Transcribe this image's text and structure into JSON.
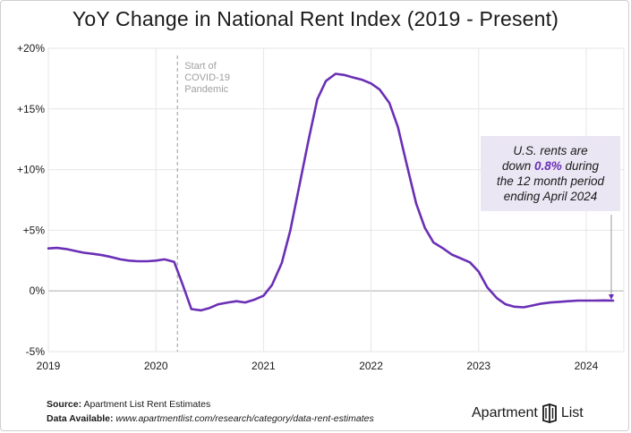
{
  "title": "YoY Change in National Rent Index (2019 - Present)",
  "annotation": {
    "covid_line1": "Start of",
    "covid_line2": "COVID-19",
    "covid_line3": "Pandemic",
    "callout_part1": "U.S. rents are",
    "callout_part2": "down",
    "callout_highlight": "0.8%",
    "callout_part3": "during",
    "callout_part4": "the 12 month period",
    "callout_part5": "ending April 2024"
  },
  "footer": {
    "source_label": "Source:",
    "source_value": "Apartment List Rent Estimates",
    "data_label": "Data Available:",
    "data_value": "www.apartmentlist.com/research/category/data-rent-estimates"
  },
  "logo": {
    "word1": "Apartment",
    "word2": "List"
  },
  "colors": {
    "line": "#6a2fb5",
    "callout_bg": "#ebe6f3",
    "grid": "#e6e6e6",
    "zero": "#b5b5b5"
  },
  "chart_data": {
    "type": "line",
    "title": "YoY Change in National Rent Index (2019 - Present)",
    "xlabel": "",
    "ylabel": "",
    "ylim": [
      -5,
      20
    ],
    "xlim": [
      2019,
      2024.35
    ],
    "yticks": [
      -5,
      0,
      5,
      10,
      15,
      20
    ],
    "ytick_labels": [
      "-5%",
      "0%",
      "+5%",
      "+10%",
      "+15%",
      "+20%"
    ],
    "xticks": [
      2019,
      2020,
      2021,
      2022,
      2023,
      2024
    ],
    "xtick_labels": [
      "2019",
      "2020",
      "2021",
      "2022",
      "2023",
      "2024"
    ],
    "covid_marker_x": 2020.2,
    "series": [
      {
        "name": "YoY Change in National Rent Index",
        "x": [
          2019.0,
          2019.08,
          2019.17,
          2019.25,
          2019.33,
          2019.42,
          2019.5,
          2019.58,
          2019.67,
          2019.75,
          2019.83,
          2019.92,
          2020.0,
          2020.08,
          2020.17,
          2020.25,
          2020.33,
          2020.42,
          2020.5,
          2020.58,
          2020.67,
          2020.75,
          2020.83,
          2020.92,
          2021.0,
          2021.08,
          2021.17,
          2021.25,
          2021.33,
          2021.42,
          2021.5,
          2021.58,
          2021.67,
          2021.75,
          2021.83,
          2021.92,
          2022.0,
          2022.08,
          2022.17,
          2022.25,
          2022.33,
          2022.42,
          2022.5,
          2022.58,
          2022.67,
          2022.75,
          2022.83,
          2022.92,
          2023.0,
          2023.08,
          2023.17,
          2023.25,
          2023.33,
          2023.42,
          2023.5,
          2023.58,
          2023.67,
          2023.75,
          2023.83,
          2023.92,
          2024.0,
          2024.08,
          2024.17,
          2024.25
        ],
        "y": [
          3.5,
          3.55,
          3.45,
          3.3,
          3.15,
          3.05,
          2.95,
          2.8,
          2.6,
          2.5,
          2.45,
          2.45,
          2.5,
          2.6,
          2.4,
          0.5,
          -1.5,
          -1.6,
          -1.4,
          -1.1,
          -0.95,
          -0.85,
          -0.95,
          -0.7,
          -0.4,
          0.5,
          2.3,
          5.0,
          8.5,
          12.5,
          15.8,
          17.3,
          17.9,
          17.8,
          17.6,
          17.4,
          17.1,
          16.6,
          15.5,
          13.5,
          10.5,
          7.2,
          5.2,
          4.0,
          3.5,
          3.0,
          2.7,
          2.35,
          1.6,
          0.3,
          -0.6,
          -1.1,
          -1.3,
          -1.35,
          -1.2,
          -1.05,
          -0.95,
          -0.9,
          -0.85,
          -0.8,
          -0.8,
          -0.8,
          -0.78,
          -0.8
        ]
      }
    ]
  }
}
